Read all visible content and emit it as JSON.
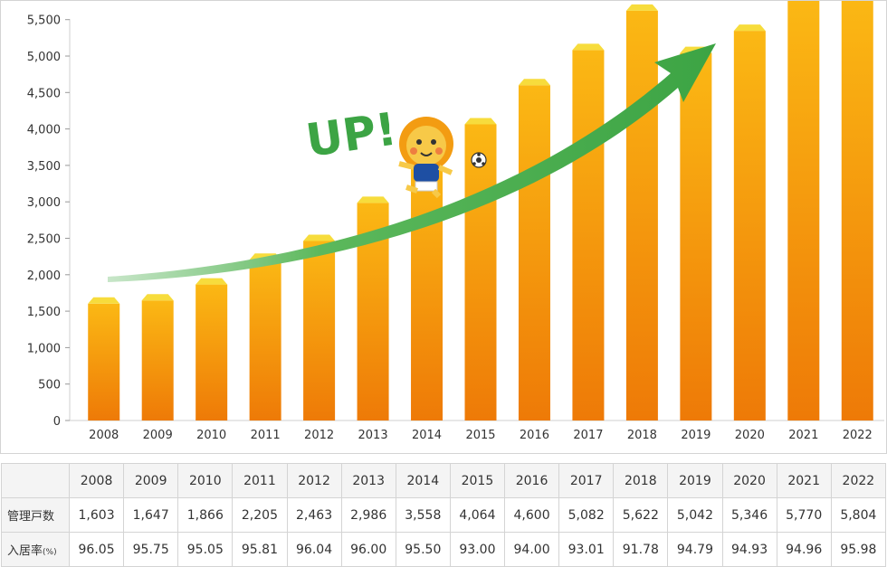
{
  "chart_data": {
    "type": "bar",
    "categories": [
      "2008",
      "2009",
      "2010",
      "2011",
      "2012",
      "2013",
      "2014",
      "2015",
      "2016",
      "2017",
      "2018",
      "2019",
      "2020",
      "2021",
      "2022"
    ],
    "values": [
      1603,
      1647,
      1866,
      2205,
      2463,
      2986,
      3558,
      4064,
      4600,
      5082,
      5622,
      5042,
      5346,
      5770,
      5804
    ],
    "y_ticks": [
      "0",
      "500",
      "1,000",
      "1,500",
      "2,000",
      "2,500",
      "3,000",
      "3,500",
      "4,000",
      "4,500",
      "5,000",
      "5,500"
    ],
    "ylim": [
      0,
      5800
    ],
    "grid": false,
    "annotation": "UP!",
    "colors": {
      "bar_top": "#fbb814",
      "bar_bottom": "#ee7a07",
      "bar_cap": "#f7dc3c",
      "arrow": "#3ca444"
    }
  },
  "table": {
    "header": [
      "2008",
      "2009",
      "2010",
      "2011",
      "2012",
      "2013",
      "2014",
      "2015",
      "2016",
      "2017",
      "2018",
      "2019",
      "2020",
      "2021",
      "2022"
    ],
    "rows": [
      {
        "label": "管理戸数",
        "unit": "",
        "values": [
          "1,603",
          "1,647",
          "1,866",
          "2,205",
          "2,463",
          "2,986",
          "3,558",
          "4,064",
          "4,600",
          "5,082",
          "5,622",
          "5,042",
          "5,346",
          "5,770",
          "5,804"
        ]
      },
      {
        "label": "入居率",
        "unit": "(%)",
        "values": [
          "96.05",
          "95.75",
          "95.05",
          "95.81",
          "96.04",
          "96.00",
          "95.50",
          "93.00",
          "94.00",
          "93.01",
          "91.78",
          "94.79",
          "94.93",
          "94.96",
          "95.98"
        ]
      }
    ]
  }
}
